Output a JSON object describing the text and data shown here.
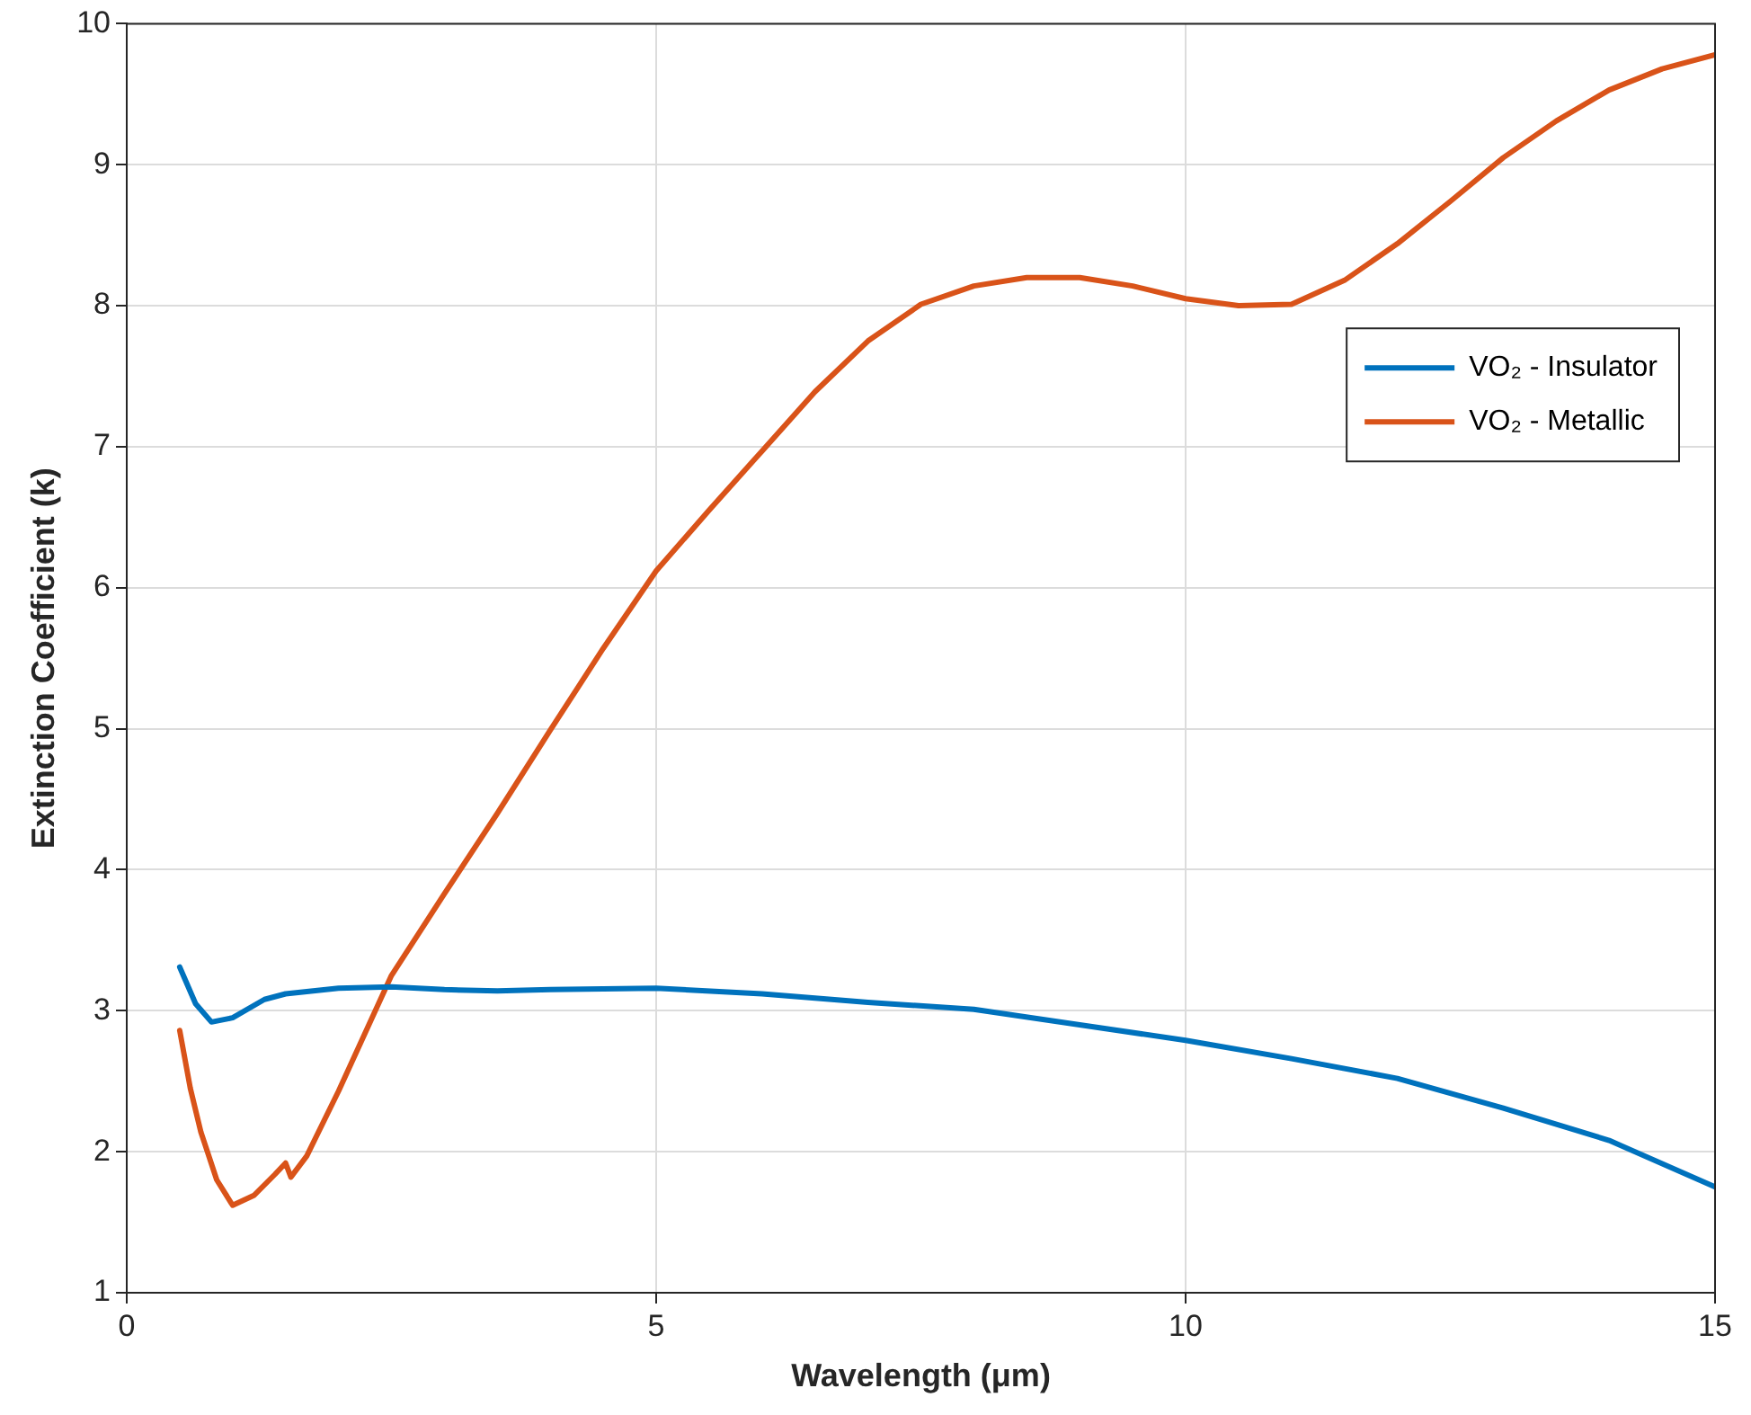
{
  "chart_data": {
    "type": "line",
    "xlabel": "Wavelength (μm)",
    "ylabel": "Extinction Coefficient (k)",
    "xlim": [
      0,
      15
    ],
    "ylim": [
      1,
      10
    ],
    "xticks": [
      0,
      5,
      10,
      15
    ],
    "yticks": [
      1,
      2,
      3,
      4,
      5,
      6,
      7,
      8,
      9,
      10
    ],
    "grid": true,
    "legend": "top right",
    "marker": "none",
    "line_style": "solid",
    "series": [
      {
        "name": "VO₂ - Insulator",
        "color": "#0072bd",
        "x": [
          0.5,
          0.65,
          0.8,
          1,
          1.3,
          1.5,
          2,
          2.5,
          3,
          3.5,
          4,
          5,
          6,
          7,
          8,
          9,
          10,
          11,
          12,
          13,
          14,
          15
        ],
        "values": [
          3.31,
          3.05,
          2.92,
          2.95,
          3.08,
          3.12,
          3.16,
          3.17,
          3.15,
          3.14,
          3.15,
          3.16,
          3.12,
          3.06,
          3.01,
          2.9,
          2.79,
          2.66,
          2.52,
          2.31,
          2.08,
          1.75
        ]
      },
      {
        "name": "VO₂ - Metallic",
        "color": "#d95319",
        "x": [
          0.5,
          0.6,
          0.7,
          0.85,
          1,
          1.2,
          1.4,
          1.5,
          1.55,
          1.7,
          2,
          2.5,
          3,
          3.5,
          4,
          4.5,
          5,
          5.5,
          6,
          6.5,
          7,
          7.5,
          8,
          8.5,
          9,
          9.5,
          10,
          10.5,
          11,
          11.5,
          12,
          12.5,
          13,
          13.5,
          14,
          14.5,
          15
        ],
        "values": [
          2.86,
          2.45,
          2.14,
          1.8,
          1.62,
          1.69,
          1.84,
          1.92,
          1.82,
          1.97,
          2.43,
          3.25,
          3.83,
          4.4,
          4.99,
          5.57,
          6.12,
          6.55,
          6.97,
          7.39,
          7.75,
          8.01,
          8.14,
          8.2,
          8.2,
          8.14,
          8.05,
          8.0,
          8.01,
          8.18,
          8.44,
          8.74,
          9.05,
          9.31,
          9.53,
          9.68,
          9.78
        ]
      }
    ]
  }
}
